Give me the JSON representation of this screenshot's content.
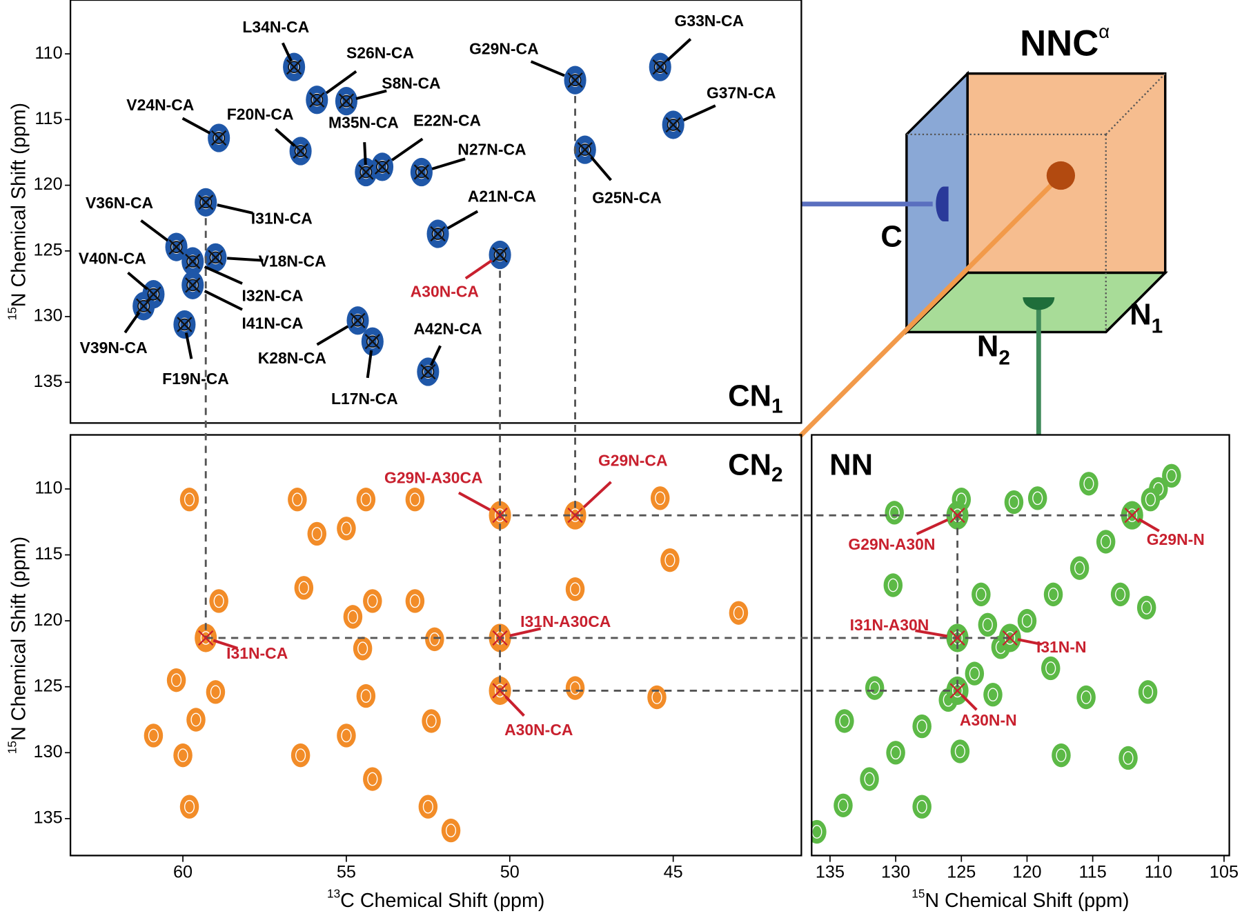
{
  "figure": {
    "cube_title": "NNC",
    "cube_title_sup": "α",
    "face_c": "C",
    "face_n1": "N",
    "face_n1_sub": "1",
    "face_n2": "N",
    "face_n2_sub": "2"
  },
  "chart_data": [
    {
      "type": "scatter",
      "panel_label": "CN",
      "panel_label_sub": "1",
      "y_label_sup": "15",
      "y_label": "N Chemical Shift (ppm)",
      "xlim": [
        63.44,
        41.08
      ],
      "ylim": [
        105.9,
        138.1
      ],
      "yticks": [
        110,
        115,
        120,
        125,
        130,
        135
      ],
      "color": "#1f57a8",
      "labels": [
        "L34N-CA",
        "S26N-CA",
        "S8N-CA",
        "G29N-CA",
        "G33N-CA",
        "G37N-CA",
        "V24N-CA",
        "F20N-CA",
        "M35N-CA",
        "E22N-CA",
        "N27N-CA",
        "G25N-CA",
        "I31N-CA",
        "V36N-CA",
        "V18N-CA",
        "A21N-CA",
        "A30N-CA",
        "I32N-CA",
        "I41N-CA",
        "V40N-CA",
        "V39N-CA",
        "F19N-CA",
        "K28N-CA",
        "L17N-CA",
        "A42N-CA"
      ],
      "x": [
        56.6,
        55.9,
        55.0,
        48.0,
        45.4,
        45.0,
        58.9,
        56.4,
        54.4,
        53.9,
        52.7,
        47.7,
        59.3,
        60.2,
        59.0,
        52.2,
        50.3,
        59.7,
        59.7,
        60.9,
        61.2,
        59.95,
        54.65,
        54.2,
        52.5
      ],
      "values": [
        111.0,
        113.5,
        113.6,
        112.0,
        111.0,
        115.4,
        116.4,
        117.4,
        119.0,
        118.6,
        119.0,
        117.3,
        121.3,
        124.7,
        125.5,
        123.7,
        125.3,
        125.8,
        127.6,
        128.3,
        129.2,
        130.6,
        130.3,
        131.9,
        134.2
      ],
      "label_colors": [
        "#000",
        "#000",
        "#000",
        "#000",
        "#000",
        "#000",
        "#000",
        "#000",
        "#000",
        "#000",
        "#000",
        "#000",
        "#000",
        "#000",
        "#000",
        "#000",
        "#c8202e",
        "#000",
        "#000",
        "#000",
        "#000",
        "#000",
        "#000",
        "#000",
        "#000"
      ]
    },
    {
      "type": "scatter",
      "panel_label": "CN",
      "panel_label_sub": "2",
      "y_label_sup": "15",
      "y_label": "N Chemical Shift (ppm)",
      "x_label_sup": "13",
      "x_label": "C Chemical Shift (ppm)",
      "xlim": [
        63.44,
        41.08
      ],
      "ylim": [
        105.9,
        137.8
      ],
      "xticks": [
        60,
        55,
        50,
        45
      ],
      "yticks": [
        110,
        115,
        120,
        125,
        130,
        135
      ],
      "color": "#f28c28",
      "label_color": "#c8202e",
      "labels": [
        "G29N-A30CA",
        "G29N-CA",
        "I31N-A30CA",
        "I31N-CA",
        "A30N-CA"
      ],
      "x": [
        50.3,
        48.0,
        50.3,
        59.3,
        50.3
      ],
      "values": [
        112.0,
        112.0,
        121.3,
        121.3,
        125.3
      ],
      "other_x": [
        59.8,
        56.5,
        55.9,
        55.0,
        54.4,
        52.9,
        45.4,
        45.1,
        48.0,
        56.3,
        54.2,
        52.9,
        52.3,
        43.0,
        60.2,
        59.0,
        59.6,
        60.9,
        60.0,
        56.4,
        54.4,
        54.2,
        52.5,
        52.4,
        48.0,
        45.5,
        59.8,
        51.8,
        54.5,
        54.8,
        55.0,
        58.9
      ],
      "other_values": [
        110.8,
        110.8,
        113.4,
        113.0,
        110.8,
        110.8,
        110.7,
        115.4,
        117.6,
        117.5,
        118.5,
        118.5,
        121.4,
        119.4,
        124.5,
        125.4,
        127.5,
        128.7,
        130.2,
        130.2,
        125.7,
        132.0,
        134.1,
        127.6,
        125.1,
        125.8,
        134.1,
        135.9,
        122.1,
        119.7,
        128.7,
        118.5
      ]
    },
    {
      "type": "scatter",
      "panel_label": "NN",
      "x_label_sup": "15",
      "x_label": "N Chemical Shift (ppm)",
      "xlim": [
        136.4,
        104.6
      ],
      "ylim": [
        105.9,
        137.8
      ],
      "xticks": [
        135,
        130,
        125,
        120,
        115,
        110,
        105
      ],
      "color": "#5cb946",
      "label_color": "#c8202e",
      "labels": [
        "G29N-A30N",
        "G29N-N",
        "I31N-A30N",
        "I31N-N",
        "A30N-N"
      ],
      "x": [
        125.3,
        112.0,
        125.3,
        121.3,
        125.3
      ],
      "values": [
        112.0,
        112.0,
        121.3,
        121.3,
        125.3
      ],
      "other_x": [
        136,
        134,
        132,
        130,
        128,
        126,
        124,
        122,
        120,
        118,
        116,
        114,
        112,
        110,
        109,
        130.1,
        125.0,
        121.0,
        119.2,
        115.3,
        110.6,
        130.2,
        123.5,
        123.0,
        110.9,
        112.9,
        133.9,
        131.6,
        122.6,
        118.2,
        115.5,
        110.8,
        117.4,
        112.3,
        128.0,
        125.1
      ],
      "other_values": [
        136,
        134,
        132,
        130,
        128,
        126,
        124,
        122,
        120,
        118,
        116,
        114,
        112,
        110,
        109,
        111.8,
        110.8,
        111.0,
        110.7,
        109.6,
        110.8,
        117.3,
        118.0,
        120.3,
        119.0,
        118.0,
        127.6,
        125.1,
        125.6,
        123.6,
        125.8,
        125.4,
        130.2,
        130.4,
        134.1,
        129.9
      ]
    }
  ]
}
